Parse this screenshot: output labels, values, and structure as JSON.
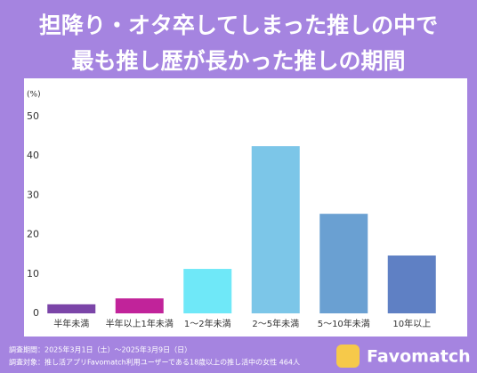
{
  "chart_data": {
    "type": "bar",
    "title": [
      "担降り・オタ卒してしまった推しの中で",
      "最も推し歴が長かった推しの期間"
    ],
    "y_unit": "(%)",
    "categories": [
      "半年未満",
      "半年以上1年未満",
      "1～2年未満",
      "2～5年未満",
      "5～10年未満",
      "10年以上"
    ],
    "values": [
      2.3,
      3.8,
      11.3,
      42.5,
      25.3,
      14.7
    ],
    "colors": [
      "#7b45a8",
      "#c1239a",
      "#6fe8f8",
      "#7cc6e8",
      "#6aa0d2",
      "#5f80c4"
    ],
    "ylim": [
      0,
      50
    ],
    "yticks": [
      0,
      10,
      20,
      30,
      40,
      50
    ],
    "grid": false,
    "footnotes": [
      "調査期間：2025年3月1日（土）〜2025年3月9日（日）",
      "調査対象：推し活アプリFavomatch利用ユーザーである18歳以上の推し活中の女性 464人"
    ],
    "brand": "Favomatch"
  }
}
